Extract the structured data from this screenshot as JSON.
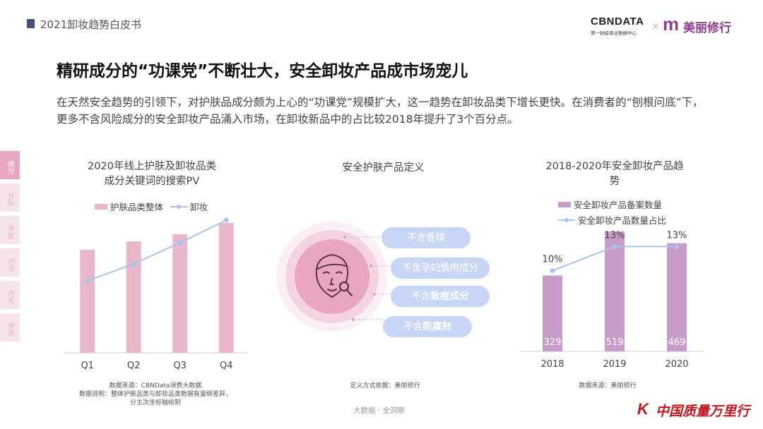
{
  "header": {
    "title": "2021卸妆趋势白皮书"
  },
  "logos": {
    "cbn_name": "CBNDATA",
    "cbn_tagline": "第一财经商业数据中心",
    "separator": "×",
    "partner_mark": "m",
    "partner_name": "美丽修行"
  },
  "title": "精研成分的“功课党”不断壮大，安全卸妆产品成市场宠儿",
  "intro": "在天然安全趋势的引领下，对护肤品成分颇为上心的“功课党”规模扩大，这一趋势在卸妆品类下增长更快。在消费者的“刨根问底”下，更多不含风险成分的安全卸妆产品涌入市场，在卸妆新品中的占比较2018年提升了3个百分点。",
  "side_tabs": [
    "成分",
    "分肤",
    "养肤",
    "分妆",
    "疗系",
    "便携"
  ],
  "left_panel": {
    "title_line1": "2020年线上护肤及卸妆品类",
    "title_line2": "成分关键词的搜索PV",
    "source": "数据来源：CBNData消费大数据",
    "note_line1": "数据说明：整体护肤品类与卸妆品类数据有量纲差异，",
    "note_line2": "分主次坐标轴绘制"
  },
  "middle_panel": {
    "title": "安全护肤产品定义",
    "source": "定义方式依据：美丽修行",
    "pills": [
      {
        "prefix": "不含香精",
        "bold": ""
      },
      {
        "prefix": "不含孕妇慎用成分",
        "bold": ""
      },
      {
        "prefix": "不含",
        "bold": "致痘成分"
      },
      {
        "prefix": "不含",
        "bold": "防腐剂"
      }
    ]
  },
  "right_panel": {
    "title_line1": "2018-2020年安全卸妆产品趋",
    "title_line2": "势",
    "source": "数据来源：美丽修行"
  },
  "footer": {
    "tagline": "大数据 · 全洞察",
    "brand_mark": "K",
    "brand_name": "中国质量万里行"
  },
  "colors": {
    "pink_bar": "#eab6cc",
    "purple_bar": "#c79cc8",
    "line": "#a9c4ea",
    "pill": "#c7d6f4"
  },
  "icons": {
    "face": "face-outline-icon",
    "magnifier": "magnifier-icon"
  },
  "chart_data": [
    {
      "type": "bar",
      "chart_id": "search-pv",
      "categories": [
        "Q1",
        "Q2",
        "Q3",
        "Q4"
      ],
      "series": [
        {
          "name": "护肤品类整体",
          "kind": "bar",
          "axis": "primary",
          "values": [
            0.73,
            0.79,
            0.84,
            0.92
          ]
        },
        {
          "name": "卸妆",
          "kind": "line",
          "axis": "secondary",
          "values": [
            0.51,
            0.63,
            0.78,
            0.94
          ]
        }
      ],
      "xlabel": "",
      "ylabel": "",
      "ylim": [
        0,
        1
      ],
      "y_axis_visible": false,
      "grid": false,
      "legend": "top-center"
    },
    {
      "type": "bar",
      "chart_id": "safe-makeup-remover",
      "categories": [
        "2018",
        "2019",
        "2020"
      ],
      "series": [
        {
          "name": "安全卸妆产品备案数量",
          "kind": "bar",
          "axis": "primary",
          "values": [
            329,
            519,
            469
          ],
          "labels": [
            "329",
            "519",
            "469"
          ]
        },
        {
          "name": "安全卸妆产品数量占比",
          "kind": "line",
          "axis": "secondary",
          "values": [
            10,
            13,
            13
          ],
          "labels": [
            "10%",
            "13%",
            "13%"
          ],
          "unit": "%"
        }
      ],
      "xlabel": "",
      "ylabel": "",
      "ylim": [
        0,
        560
      ],
      "y2lim": [
        0,
        16
      ],
      "grid": false,
      "legend": "top-left"
    }
  ]
}
